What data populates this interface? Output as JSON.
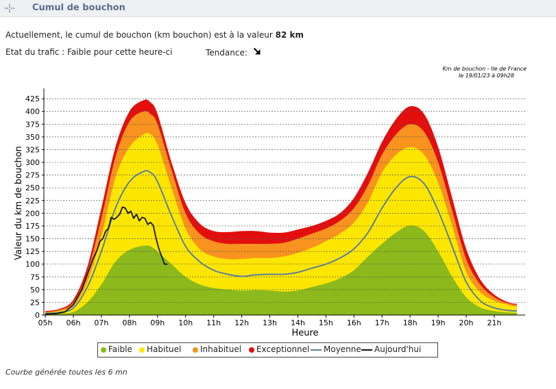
{
  "header": {
    "title": "Cumul de bouchon"
  },
  "status": {
    "current_prefix": "Actuellement, le cumul de bouchon (km bouchon) est à la valeur",
    "current_value": "82 km",
    "traffic_state": "Etat du trafic : Faible pour cette heure-ci",
    "trend_label": "Tendance:",
    "trend_icon": "arrow-down-right-icon"
  },
  "footer": "Courbe générée toutes les 6 mn",
  "colors": {
    "exceptionnel": "#e30f0f",
    "inhabituel": "#f7931e",
    "habituel": "#fce600",
    "faible": "#8cb91b",
    "moyenne": "#5d7f98",
    "aujourdhui": "#111111"
  },
  "chart_data": {
    "type": "area",
    "title_line1": "Km de bouchon - Ile de France",
    "title_line2": "le 19/01/23 à 09h28",
    "ylabel": "Valeur du  km de bouchon",
    "xlabel": "Heure",
    "ylim": [
      0,
      440
    ],
    "xlim": [
      4.95,
      22.1
    ],
    "yticks": [
      0,
      25,
      50,
      75,
      100,
      125,
      150,
      175,
      200,
      225,
      250,
      275,
      300,
      325,
      350,
      375,
      400,
      425
    ],
    "xticks": [
      {
        "v": 5,
        "label": "05h"
      },
      {
        "v": 6,
        "label": "06h"
      },
      {
        "v": 7,
        "label": "07h"
      },
      {
        "v": 8,
        "label": "08h"
      },
      {
        "v": 9,
        "label": "09h"
      },
      {
        "v": 10,
        "label": "10h"
      },
      {
        "v": 11,
        "label": "11h"
      },
      {
        "v": 12,
        "label": "12h"
      },
      {
        "v": 13,
        "label": "13h"
      },
      {
        "v": 14,
        "label": "14h"
      },
      {
        "v": 15,
        "label": "15h"
      },
      {
        "v": 16,
        "label": "16h"
      },
      {
        "v": 17,
        "label": "17h"
      },
      {
        "v": 18,
        "label": "18h"
      },
      {
        "v": 19,
        "label": "19h"
      },
      {
        "v": 20,
        "label": "20h"
      },
      {
        "v": 21,
        "label": "21h"
      }
    ],
    "grid": true,
    "legend_placement": "bottom",
    "x": [
      5.0,
      5.5,
      6.0,
      6.5,
      7.0,
      7.5,
      8.0,
      8.5,
      8.75,
      9.0,
      9.5,
      10.0,
      10.5,
      11.0,
      11.5,
      12.0,
      12.5,
      13.0,
      13.5,
      14.0,
      14.5,
      15.0,
      15.5,
      16.0,
      16.5,
      17.0,
      17.5,
      18.0,
      18.5,
      19.0,
      19.5,
      20.0,
      20.5,
      21.0,
      21.5,
      21.8
    ],
    "bands": [
      {
        "name": "Exceptionnel",
        "color_key": "exceptionnel",
        "values": [
          8,
          12,
          30,
          95,
          210,
          330,
          400,
          422,
          418,
          395,
          300,
          220,
          180,
          165,
          163,
          165,
          165,
          162,
          162,
          168,
          175,
          185,
          200,
          230,
          280,
          340,
          385,
          410,
          395,
          330,
          230,
          130,
          70,
          40,
          25,
          22
        ]
      },
      {
        "name": "Inhabituel",
        "color_key": "inhabituel",
        "values": [
          6,
          10,
          25,
          85,
          190,
          310,
          380,
          400,
          395,
          375,
          285,
          200,
          160,
          145,
          140,
          140,
          140,
          140,
          142,
          150,
          160,
          170,
          185,
          210,
          255,
          315,
          355,
          375,
          360,
          300,
          205,
          110,
          60,
          35,
          23,
          20
        ]
      },
      {
        "name": "Habituel",
        "color_key": "habituel",
        "values": [
          4,
          8,
          18,
          65,
          155,
          270,
          330,
          355,
          355,
          335,
          250,
          170,
          130,
          115,
          110,
          110,
          112,
          112,
          115,
          122,
          132,
          145,
          160,
          182,
          222,
          280,
          315,
          330,
          315,
          260,
          175,
          85,
          45,
          28,
          20,
          16
        ]
      },
      {
        "name": "Faible",
        "color_key": "faible",
        "values": [
          2,
          3,
          6,
          25,
          60,
          105,
          128,
          136,
          135,
          125,
          100,
          75,
          60,
          53,
          50,
          48,
          49,
          48,
          46,
          48,
          55,
          62,
          72,
          88,
          115,
          140,
          162,
          176,
          165,
          125,
          75,
          35,
          15,
          8,
          5,
          4
        ]
      }
    ],
    "series": [
      {
        "name": "Moyenne",
        "color_key": "moyenne",
        "values": [
          3,
          5,
          14,
          55,
          125,
          210,
          262,
          282,
          280,
          262,
          195,
          135,
          105,
          88,
          80,
          76,
          79,
          80,
          80,
          84,
          92,
          100,
          112,
          130,
          162,
          210,
          250,
          272,
          258,
          205,
          135,
          65,
          28,
          14,
          9,
          8
        ]
      }
    ],
    "today": {
      "name": "Aujourd'hui",
      "color_key": "aujourdhui",
      "x": [
        5.0,
        5.4,
        5.7,
        6.0,
        6.3,
        6.5,
        6.7,
        6.85,
        6.95,
        7.05,
        7.15,
        7.25,
        7.35,
        7.45,
        7.55,
        7.65,
        7.75,
        7.85,
        7.95,
        8.05,
        8.15,
        8.25,
        8.35,
        8.45,
        8.55,
        8.65,
        8.75,
        8.85,
        8.95,
        9.05,
        9.15,
        9.25,
        9.35
      ],
      "values": [
        2,
        3,
        6,
        20,
        50,
        80,
        110,
        128,
        145,
        150,
        165,
        170,
        192,
        188,
        192,
        198,
        212,
        210,
        200,
        204,
        190,
        198,
        185,
        192,
        190,
        178,
        182,
        176,
        150,
        130,
        115,
        100,
        100
      ]
    },
    "legend": [
      {
        "label": "Faible",
        "kind": "dot",
        "color_key": "faible"
      },
      {
        "label": "Habituel",
        "kind": "dot",
        "color_key": "habituel"
      },
      {
        "label": "Inhabituel",
        "kind": "dot",
        "color_key": "inhabituel"
      },
      {
        "label": "Exceptionnel",
        "kind": "dot",
        "color_key": "exceptionnel"
      },
      {
        "label": "Moyenne",
        "kind": "line",
        "color_key": "moyenne"
      },
      {
        "label": "Aujourd'hui",
        "kind": "line",
        "color_key": "aujourdhui"
      }
    ]
  }
}
